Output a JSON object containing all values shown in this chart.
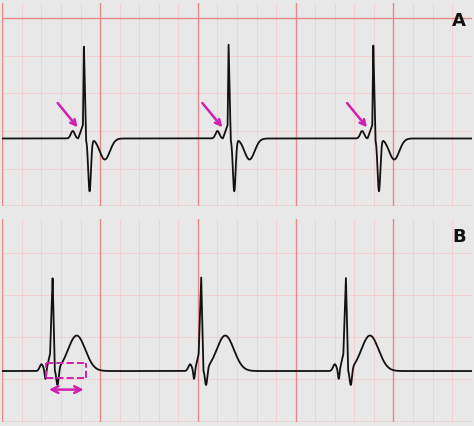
{
  "bg_color": "#fce8e8",
  "grid_major_color": "#e88888",
  "grid_minor_color": "#f5c8c8",
  "ecg_color": "#111111",
  "arrow_color": "#d020b0",
  "label_color": "#111111",
  "figsize": [
    4.74,
    4.27
  ],
  "dpi": 100,
  "panel_A_label": "A",
  "panel_B_label": "B",
  "panel_A_beats": [
    1.8,
    5.5,
    9.2
  ],
  "panel_B_beats": [
    1.0,
    4.8,
    8.5
  ],
  "xlim": [
    0,
    12
  ],
  "ylim_A": [
    -0.9,
    1.8
  ],
  "ylim_B": [
    -0.6,
    1.8
  ]
}
